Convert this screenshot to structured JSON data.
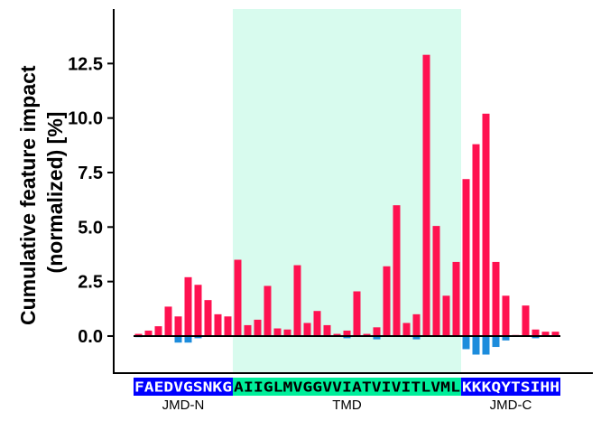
{
  "chart_data": {
    "type": "bar",
    "title": "",
    "xlabel": "",
    "ylabel_lines": [
      "Cumulative feature impact",
      "(normalized) [%]"
    ],
    "ylim": [
      -1.7,
      15.0
    ],
    "yticks": [
      0.0,
      2.5,
      5.0,
      7.5,
      10.0,
      12.5
    ],
    "ytick_labels": [
      "0.0",
      "2.5",
      "5.0",
      "7.5",
      "10.0",
      "12.5"
    ],
    "grid": false,
    "colors": {
      "positive": "#ff1150",
      "negative": "#1c8cdc",
      "tmd_band": "#d8fbee"
    },
    "regions": [
      {
        "name": "JMD-N",
        "sequence": "FAEDVGSNKG",
        "box_color": "#0000ff",
        "text_color": "#ffffff",
        "shade": false
      },
      {
        "name": "TMD",
        "sequence": "AIIGLMVGGVVIATVIVITLVML",
        "box_color": "#00ee9a",
        "text_color": "#000000",
        "shade": true
      },
      {
        "name": "JMD-C",
        "sequence": "KKKQYTSIHH",
        "box_color": "#0000ff",
        "text_color": "#ffffff",
        "shade": false
      }
    ],
    "series": [
      {
        "name": "",
        "values": [
          0.1,
          0.25,
          0.45,
          1.35,
          0.9,
          2.7,
          2.35,
          1.65,
          1.0,
          0.9,
          3.5,
          0.5,
          0.75,
          2.3,
          0.35,
          0.3,
          3.25,
          0.6,
          1.15,
          0.5,
          0.1,
          0.25,
          2.05,
          0.1,
          0.4,
          3.2,
          6.0,
          0.6,
          1.0,
          12.9,
          5.05,
          1.85,
          3.4,
          7.2,
          8.8,
          10.2,
          3.4,
          1.85,
          0.05,
          1.4,
          0.3,
          0.2,
          0.2
        ]
      },
      {
        "name": "",
        "values": [
          -0.05,
          0,
          0,
          0,
          -0.3,
          -0.3,
          -0.1,
          0,
          0,
          0,
          0,
          0,
          0,
          0,
          0,
          0,
          0,
          0,
          0,
          0,
          0,
          -0.1,
          0,
          0,
          -0.15,
          0,
          0,
          0,
          -0.15,
          0,
          0,
          0,
          0,
          -0.6,
          -0.85,
          -0.85,
          -0.5,
          -0.2,
          0,
          0,
          -0.1,
          0,
          0
        ]
      }
    ]
  }
}
